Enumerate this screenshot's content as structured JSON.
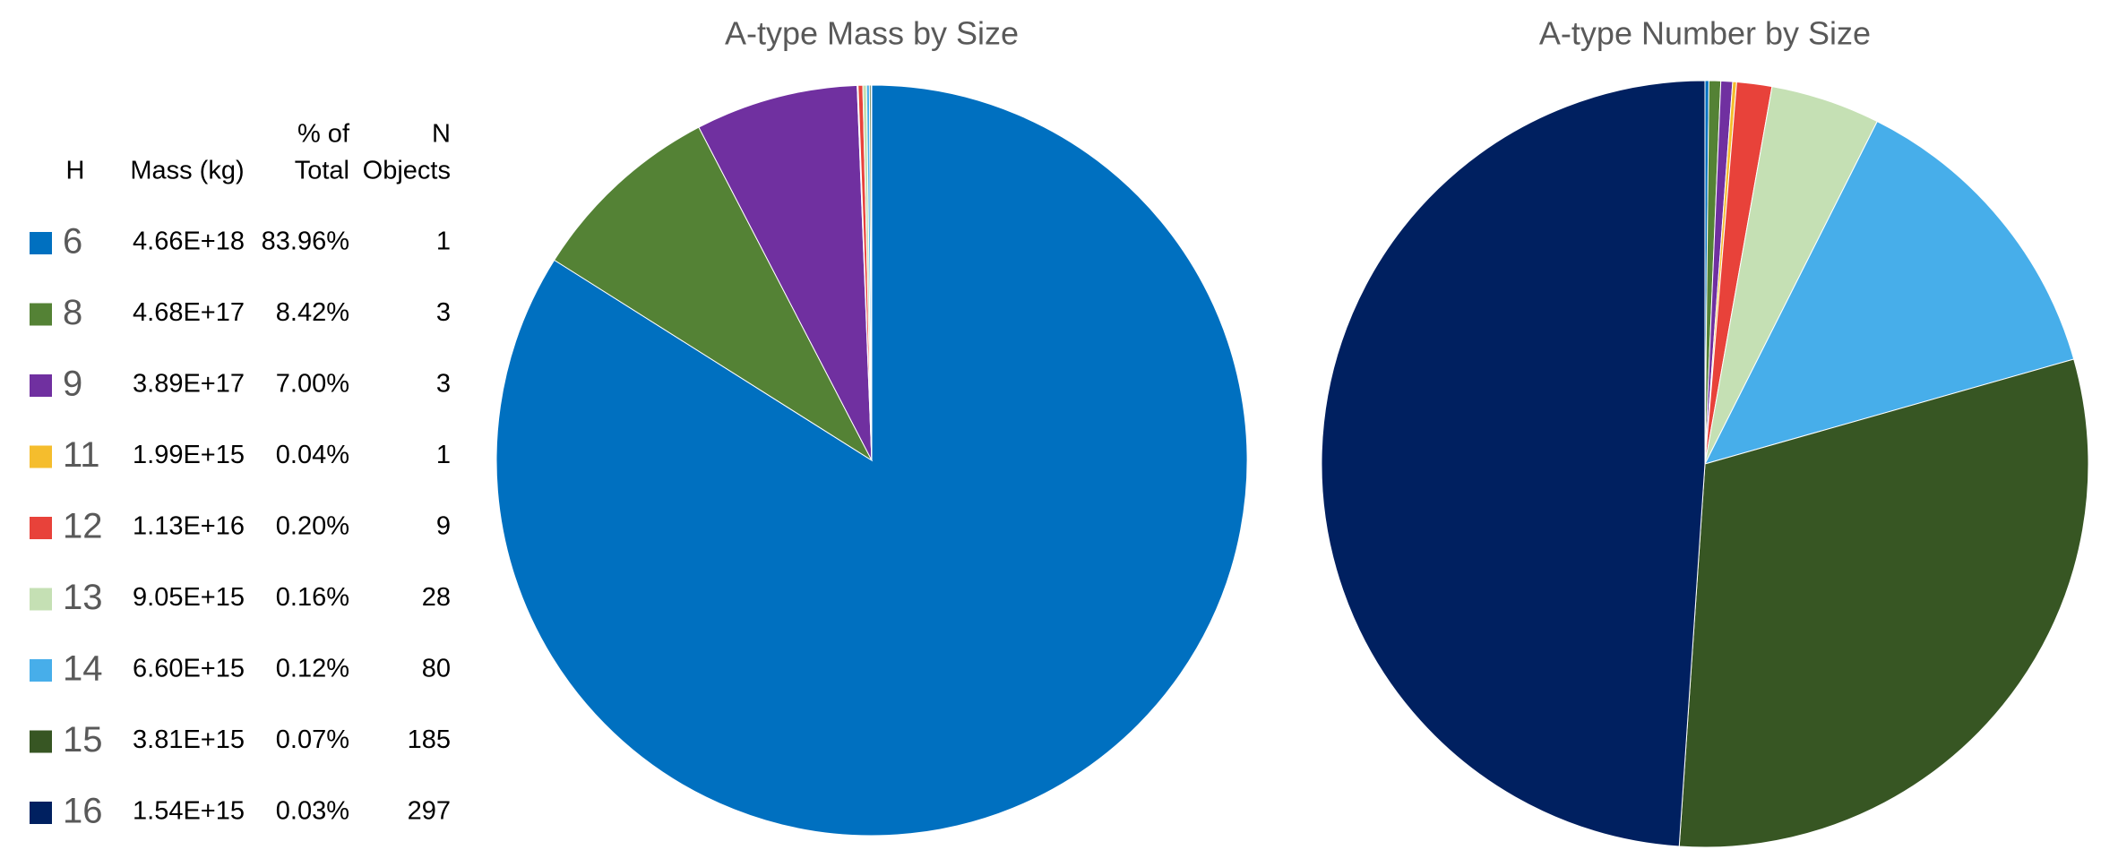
{
  "chart_data": [
    {
      "type": "pie",
      "title": "A-type Mass by Size",
      "categories": [
        "6",
        "8",
        "9",
        "11",
        "12",
        "13",
        "14",
        "15",
        "16"
      ],
      "values": [
        83.96,
        8.42,
        7.0,
        0.04,
        0.2,
        0.16,
        0.12,
        0.07,
        0.03
      ],
      "value_labels": [
        "83.96%",
        "8.42%",
        "7.00%",
        "0.04%",
        "0.20%",
        "0.16%",
        "0.12%",
        "0.07%",
        "0.03%"
      ],
      "colors": [
        "#0070c0",
        "#548235",
        "#7030a0",
        "#f5bd2d",
        "#e8423a",
        "#c5e0b4",
        "#47aeea",
        "#375623",
        "#002060"
      ]
    },
    {
      "type": "pie",
      "title": "A-type Number by Size",
      "categories": [
        "6",
        "8",
        "9",
        "11",
        "12",
        "13",
        "14",
        "15",
        "16"
      ],
      "values": [
        1,
        3,
        3,
        1,
        9,
        28,
        80,
        185,
        297
      ],
      "colors": [
        "#0070c0",
        "#548235",
        "#7030a0",
        "#f5bd2d",
        "#e8423a",
        "#c5e0b4",
        "#47aeea",
        "#375623",
        "#002060"
      ]
    }
  ],
  "table": {
    "headers": [
      [
        "H"
      ],
      [
        "Mass (kg)"
      ],
      [
        "% of",
        "Total"
      ],
      [
        "N",
        "Objects"
      ]
    ],
    "mass": [
      "4.66E+18",
      "4.68E+17",
      "3.89E+17",
      "1.99E+15",
      "1.13E+16",
      "9.05E+15",
      "6.60E+15",
      "3.81E+15",
      "1.54E+15"
    ]
  }
}
